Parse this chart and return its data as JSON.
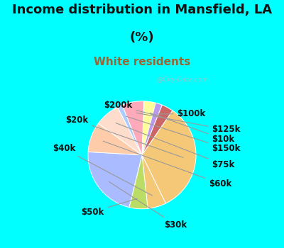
{
  "title_line1": "Income distribution in Mansfield, LA",
  "title_line2": "(%)",
  "subtitle": "White residents",
  "bg_cyan": "#00FFFF",
  "bg_chart_color": "#d0ece0",
  "labels": [
    "$10k",
    "$100k",
    "$200k",
    "$20k",
    "$40k",
    "$50k",
    "$30k",
    "$60k",
    "$75k",
    "$150k",
    "$125k"
  ],
  "sizes": [
    3.5,
    2.0,
    3.5,
    33.0,
    5.5,
    5.5,
    22.0,
    9.0,
    7.5,
    1.5,
    6.5
  ],
  "colors": [
    "#FFFF99",
    "#BB99EE",
    "#CC6666",
    "#F5C878",
    "#F5C878",
    "#BBDD66",
    "#AABBFF",
    "#FFCCAA",
    "#FFDDCC",
    "#AACCFF",
    "#FFAABB"
  ],
  "startangle": 88,
  "subtitle_color": "#996633",
  "watermark": "@City-Data.com",
  "title_fontsize": 13,
  "subtitle_fontsize": 11,
  "label_fontsize": 8.5
}
